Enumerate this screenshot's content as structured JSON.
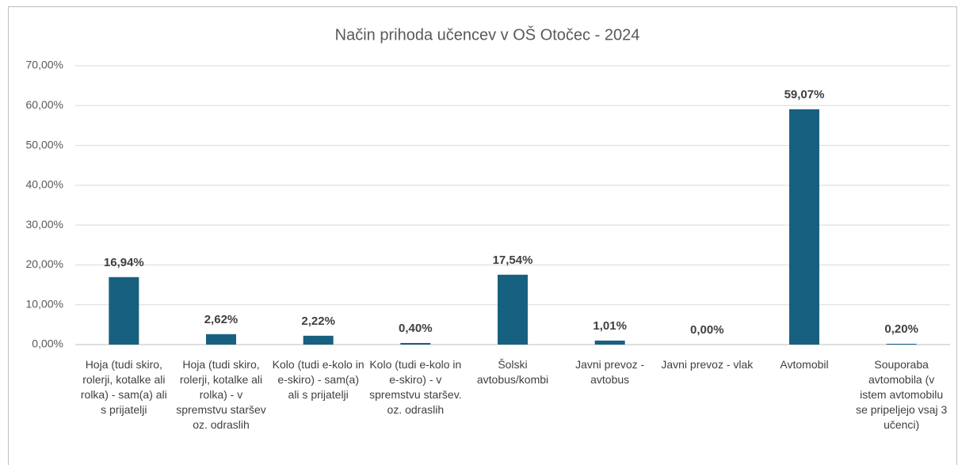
{
  "chart_data": {
    "type": "bar",
    "title": "Način prihoda učencev v OŠ Otočec - 2024",
    "categories": [
      "Hoja (tudi skiro, rolerji, kotalke ali rolka) - sam(a) ali s prijatelji",
      "Hoja (tudi skiro, rolerji, kotalke ali rolka) - v spremstvu staršev oz. odraslih",
      "Kolo (tudi e-kolo in e-skiro) - sam(a) ali s prijatelji",
      "Kolo (tudi e-kolo in e-skiro) - v spremstvu staršev. oz. odraslih",
      "Šolski avtobus/kombi",
      "Javni prevoz - avtobus",
      "Javni prevoz - vlak",
      "Avtomobil",
      "Souporaba avtomobila (v istem avtomobilu se pripeljejo vsaj 3 učenci)"
    ],
    "values": [
      16.94,
      2.62,
      2.22,
      0.4,
      17.54,
      1.01,
      0.0,
      59.07,
      0.2
    ],
    "value_labels": [
      "16,94%",
      "2,62%",
      "2,22%",
      "0,40%",
      "17,54%",
      "1,01%",
      "0,00%",
      "59,07%",
      "0,20%"
    ],
    "color": "#18607f",
    "ylim": [
      0,
      70
    ],
    "yticks": [
      {
        "value": 0,
        "label": "0,00%"
      },
      {
        "value": 10,
        "label": "10,00%"
      },
      {
        "value": 20,
        "label": "20,00%"
      },
      {
        "value": 30,
        "label": "30,00%"
      },
      {
        "value": 40,
        "label": "40,00%"
      },
      {
        "value": 50,
        "label": "50,00%"
      },
      {
        "value": 60,
        "label": "60,00%"
      },
      {
        "value": 70,
        "label": "70,00%"
      }
    ],
    "grid": true
  }
}
